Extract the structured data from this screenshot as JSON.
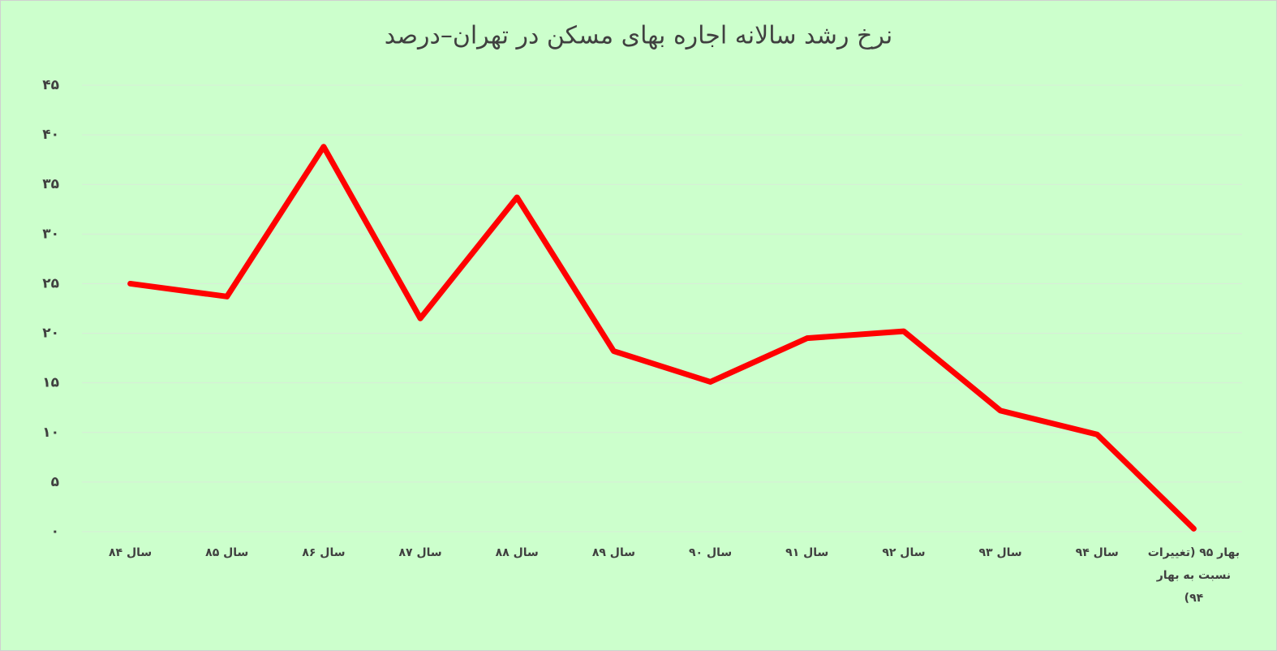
{
  "chart_data": {
    "type": "line",
    "title": "نرخ رشد سالانه اجاره بهای مسکن در تهران–درصد",
    "categories": [
      "سال ۸۴",
      "سال ۸۵",
      "سال ۸۶",
      "سال ۸۷",
      "سال ۸۸",
      "سال ۸۹",
      "سال ۹۰",
      "سال ۹۱",
      "سال ۹۲",
      "سال ۹۳",
      "سال ۹۴",
      "بهار ۹۵ (تغییرات نسبت به بهار ۹۴)"
    ],
    "series": [
      {
        "color": "#ff0000",
        "values": [
          25.0,
          23.7,
          38.8,
          21.5,
          33.7,
          18.2,
          15.1,
          19.5,
          20.2,
          12.2,
          9.8,
          0.3
        ]
      }
    ],
    "ylim": [
      0,
      45
    ],
    "yticks": [
      {
        "value": 0,
        "label": "۰"
      },
      {
        "value": 5,
        "label": "۵"
      },
      {
        "value": 10,
        "label": "۱۰"
      },
      {
        "value": 15,
        "label": "۱۵"
      },
      {
        "value": 20,
        "label": "۲۰"
      },
      {
        "value": 25,
        "label": "۲۵"
      },
      {
        "value": 30,
        "label": "۳۰"
      },
      {
        "value": 35,
        "label": "۳۵"
      },
      {
        "value": 40,
        "label": "۴۰"
      },
      {
        "value": 45,
        "label": "۴۵"
      }
    ],
    "grid": true
  }
}
